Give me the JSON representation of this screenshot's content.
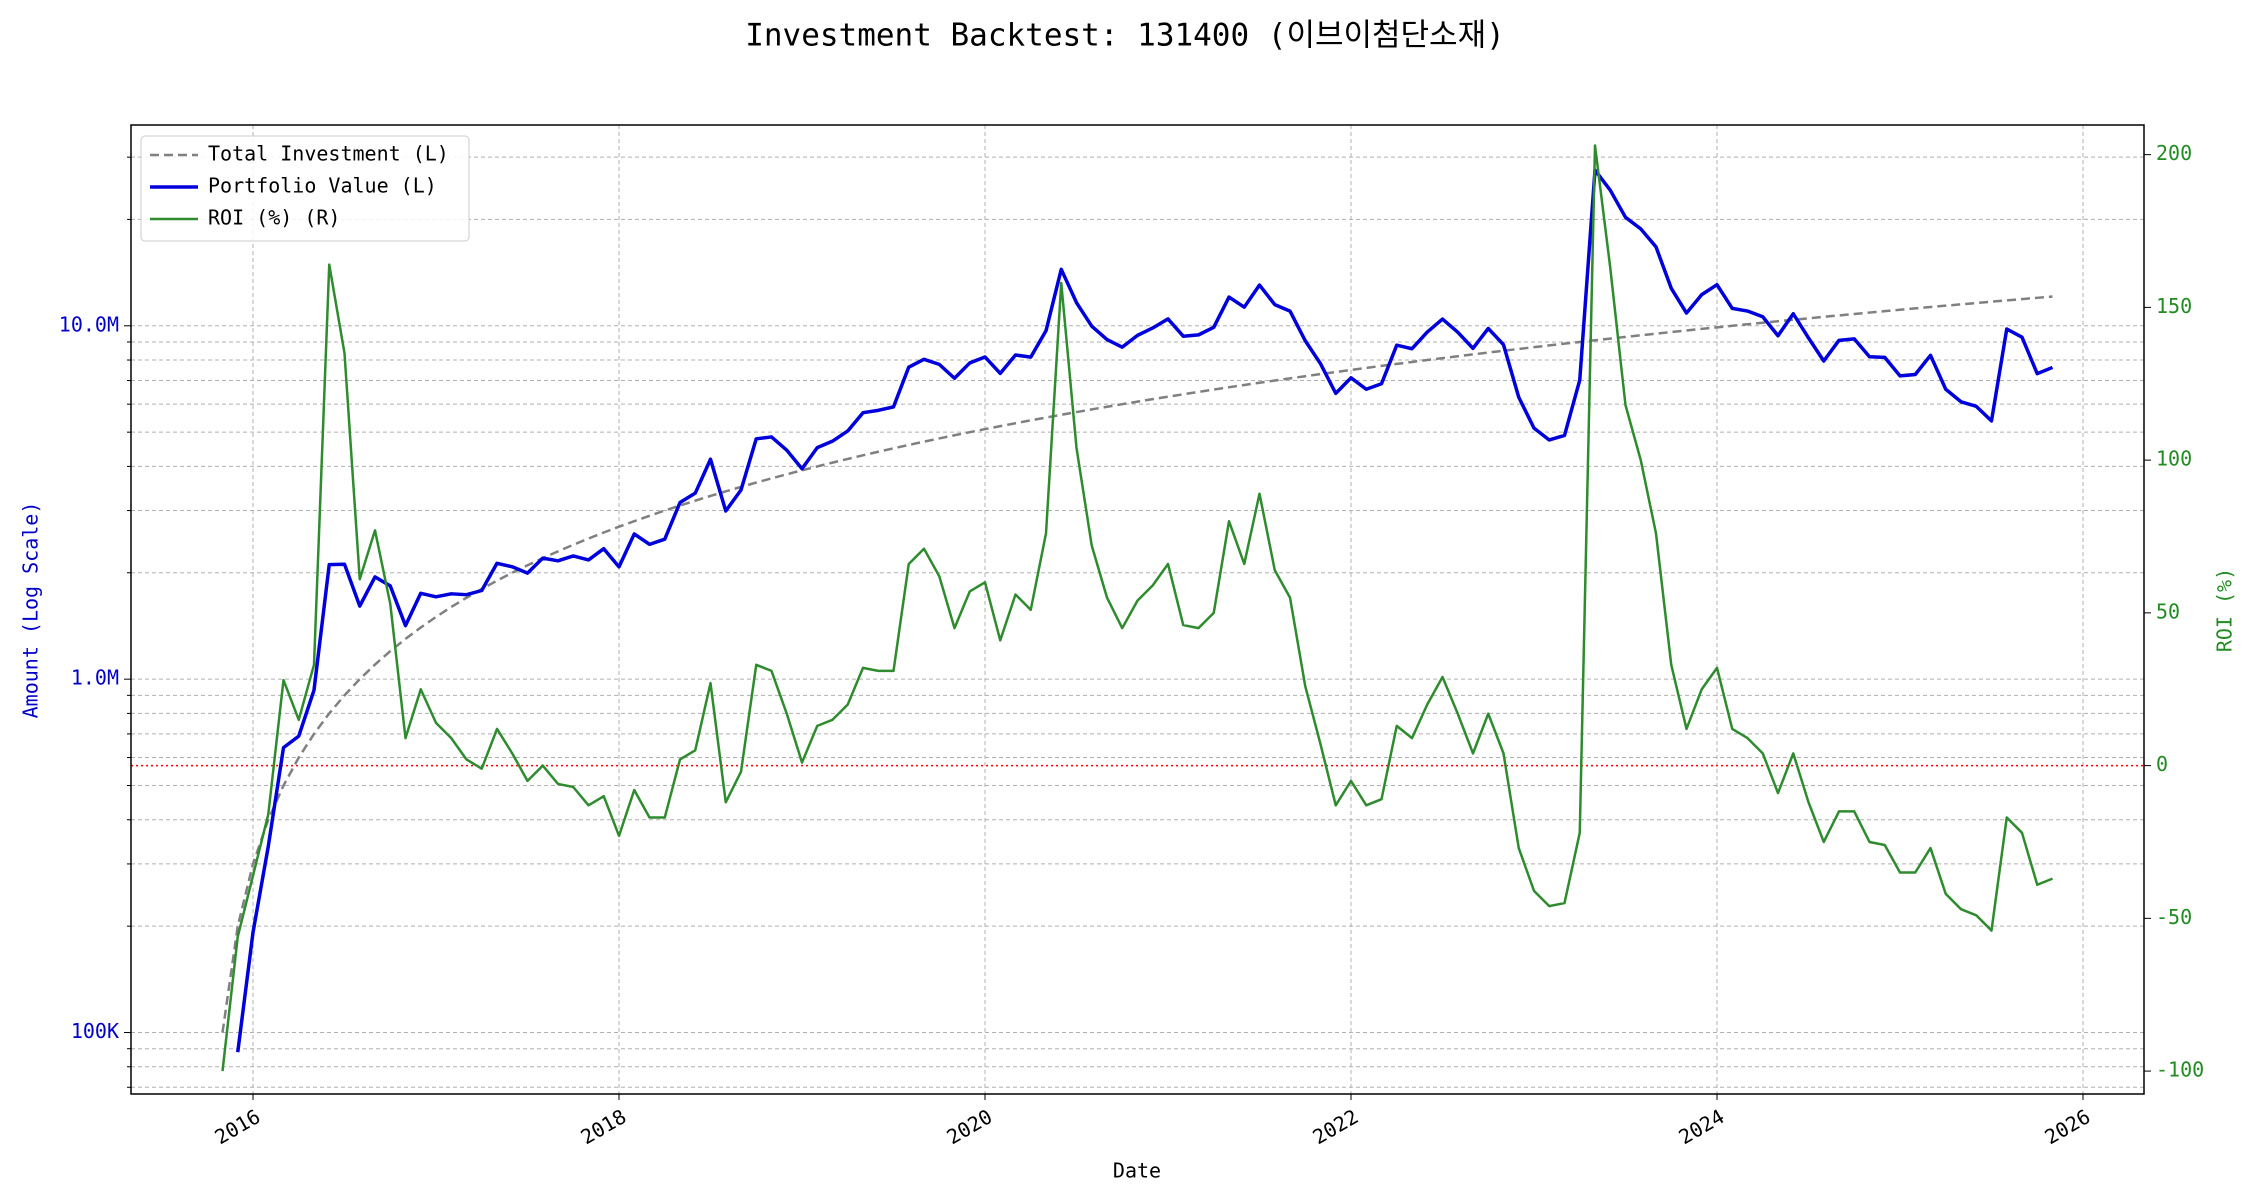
{
  "chart_data": {
    "type": "line",
    "title": "Investment Backtest: 131400 (이브이첨단소재)",
    "x_label": "Date",
    "y_label": "Amount (Log Scale)",
    "y2_label": "ROI (%)",
    "y_label_color": "#0000cc",
    "y2_label_color": "#228b22",
    "ylog": true,
    "grid": true,
    "legend": "upper left",
    "xlim": [
      "2015-05",
      "2026-05"
    ],
    "xticks": [
      {
        "value": "2016-01",
        "label": "2016"
      },
      {
        "value": "2018-01",
        "label": "2018"
      },
      {
        "value": "2020-01",
        "label": "2020"
      },
      {
        "value": "2022-01",
        "label": "2022"
      },
      {
        "value": "2024-01",
        "label": "2024"
      },
      {
        "value": "2026-01",
        "label": "2026"
      }
    ],
    "ylim": [
      67000,
      37000000
    ],
    "yticks": [
      {
        "value": 100000,
        "label": "100K"
      },
      {
        "value": 1000000,
        "label": "1.0M"
      },
      {
        "value": 10000000,
        "label": "10.0M"
      }
    ],
    "yminorticks": [
      70000,
      80000,
      90000,
      200000,
      300000,
      400000,
      500000,
      600000,
      700000,
      800000,
      900000,
      2000000,
      3000000,
      4000000,
      5000000,
      6000000,
      7000000,
      8000000,
      9000000,
      20000000,
      30000000
    ],
    "y2lim": [
      -107.5,
      209.7
    ],
    "y2ticks": [
      -100,
      -50,
      0,
      50,
      100,
      150,
      200
    ],
    "reference_line": {
      "axis": "y2",
      "value": 0,
      "color": "#ff0000"
    },
    "x": [
      "2015-11",
      "2015-12",
      "2016-01",
      "2016-02",
      "2016-03",
      "2016-04",
      "2016-05",
      "2016-06",
      "2016-07",
      "2016-08",
      "2016-09",
      "2016-10",
      "2016-11",
      "2016-12",
      "2017-01",
      "2017-02",
      "2017-03",
      "2017-04",
      "2017-05",
      "2017-06",
      "2017-07",
      "2017-08",
      "2017-09",
      "2017-10",
      "2017-11",
      "2017-12",
      "2018-01",
      "2018-02",
      "2018-03",
      "2018-04",
      "2018-05",
      "2018-06",
      "2018-07",
      "2018-08",
      "2018-09",
      "2018-10",
      "2018-11",
      "2018-12",
      "2019-01",
      "2019-02",
      "2019-03",
      "2019-04",
      "2019-05",
      "2019-06",
      "2019-07",
      "2019-08",
      "2019-09",
      "2019-10",
      "2019-11",
      "2019-12",
      "2020-01",
      "2020-02",
      "2020-03",
      "2020-04",
      "2020-05",
      "2020-06",
      "2020-07",
      "2020-08",
      "2020-09",
      "2020-10",
      "2020-11",
      "2020-12",
      "2021-01",
      "2021-02",
      "2021-03",
      "2021-04",
      "2021-05",
      "2021-06",
      "2021-07",
      "2021-08",
      "2021-09",
      "2021-10",
      "2021-11",
      "2021-12",
      "2022-01",
      "2022-02",
      "2022-03",
      "2022-04",
      "2022-05",
      "2022-06",
      "2022-07",
      "2022-08",
      "2022-09",
      "2022-10",
      "2022-11",
      "2022-12",
      "2023-01",
      "2023-02",
      "2023-03",
      "2023-04",
      "2023-05",
      "2023-06",
      "2023-07",
      "2023-08",
      "2023-09",
      "2023-10",
      "2023-11",
      "2023-12",
      "2024-01",
      "2024-02",
      "2024-03",
      "2024-04",
      "2024-05",
      "2024-06",
      "2024-07",
      "2024-08",
      "2024-09",
      "2024-10",
      "2024-11",
      "2024-12",
      "2025-01",
      "2025-02",
      "2025-03",
      "2025-04",
      "2025-05",
      "2025-06",
      "2025-07",
      "2025-08",
      "2025-09",
      "2025-10",
      "2025-11"
    ],
    "series": [
      {
        "name": "Total Investment (L)",
        "color": "#808080",
        "linestyle": "dashed",
        "width": 2.5,
        "axis": "y",
        "values": [
          100000,
          200000,
          300000,
          400000,
          500000,
          600000,
          700000,
          800000,
          900000,
          1000000,
          1100000,
          1200000,
          1300000,
          1400000,
          1500000,
          1600000,
          1700000,
          1800000,
          1900000,
          2000000,
          2100000,
          2200000,
          2300000,
          2400000,
          2500000,
          2600000,
          2700000,
          2800000,
          2900000,
          3000000,
          3100000,
          3200000,
          3300000,
          3400000,
          3500000,
          3600000,
          3700000,
          3800000,
          3900000,
          4000000,
          4100000,
          4200000,
          4300000,
          4400000,
          4500000,
          4600000,
          4700000,
          4800000,
          4900000,
          5000000,
          5100000,
          5200000,
          5300000,
          5400000,
          5500000,
          5600000,
          5700000,
          5800000,
          5900000,
          6000000,
          6100000,
          6200000,
          6300000,
          6400000,
          6500000,
          6600000,
          6700000,
          6800000,
          6900000,
          7000000,
          7100000,
          7200000,
          7300000,
          7400000,
          7500000,
          7600000,
          7700000,
          7800000,
          7900000,
          8000000,
          8100000,
          8200000,
          8300000,
          8400000,
          8500000,
          8600000,
          8700000,
          8800000,
          8900000,
          9000000,
          9100000,
          9200000,
          9300000,
          9400000,
          9500000,
          9600000,
          9700000,
          9800000,
          9900000,
          10000000,
          10100000,
          10200000,
          10300000,
          10400000,
          10500000,
          10600000,
          10700000,
          10800000,
          10900000,
          11000000,
          11100000,
          11200000,
          11300000,
          11400000,
          11500000,
          11600000,
          11700000,
          11800000,
          11900000,
          12000000,
          12100000
        ]
      },
      {
        "name": "Portfolio Value (L)",
        "color": "#0000dd",
        "linestyle": "solid",
        "width": 3.5,
        "axis": "y",
        "values": [
          null,
          88000,
          192000,
          336000,
          640000,
          690000,
          931000,
          2110000,
          2115000,
          1610000,
          1947000,
          1836000,
          1417000,
          1750000,
          1710000,
          1744000,
          1734000,
          1782000,
          2128000,
          2080000,
          1995000,
          2200000,
          2162000,
          2232000,
          2175000,
          2340000,
          2079000,
          2576000,
          2407000,
          2490000,
          3162000,
          3360000,
          4191000,
          2992000,
          3430000,
          4788000,
          4847000,
          4446000,
          3939000,
          4520000,
          4715000,
          5040000,
          5676000,
          5764000,
          5895000,
          7636000,
          8037000,
          7776000,
          7105000,
          7850000,
          8160000,
          7332000,
          8268000,
          8154000,
          9680000,
          14448000,
          11628000,
          9976000,
          9145000,
          8700000,
          9394000,
          9858000,
          10458000,
          9344000,
          9425000,
          9900000,
          12060000,
          11288000,
          13041000,
          11480000,
          11005000,
          9072000,
          7811000,
          6438000,
          7125000,
          6612000,
          6853000,
          8814000,
          8611000,
          9600000,
          10449000,
          9594000,
          8632000,
          9828000,
          8840000,
          6278000,
          5133000,
          4752000,
          4895000,
          7020000,
          27573000,
          24196000,
          20274000,
          18800000,
          16720000,
          12768000,
          10864000,
          12250000,
          13068000,
          11200000,
          11009000,
          10608000,
          9373000,
          10816000,
          9240000,
          7950000,
          9095000,
          9180000,
          8175000,
          8140000,
          7215000,
          7280000,
          8249000,
          6612000,
          6095000,
          5916000,
          5382000,
          9794000,
          9282000,
          7320000,
          7623000
        ]
      },
      {
        "name": "ROI (%) (R)",
        "color": "#2e8b2e",
        "linestyle": "solid",
        "width": 2.5,
        "axis": "y2",
        "values": [
          -100,
          -56,
          -36,
          -16,
          28,
          15,
          33,
          164,
          135,
          61,
          77,
          53,
          9,
          25,
          14,
          9,
          2,
          -1,
          12,
          4,
          -5,
          0,
          -6,
          -7,
          -13,
          -10,
          -23,
          -8,
          -17,
          -17,
          2,
          5,
          27,
          -12,
          -2,
          33,
          31,
          17,
          1,
          13,
          15,
          20,
          32,
          31,
          31,
          66,
          71,
          62,
          45,
          57,
          60,
          41,
          56,
          51,
          76,
          158,
          104,
          72,
          55,
          45,
          54,
          59,
          66,
          46,
          45,
          50,
          80,
          66,
          89,
          64,
          55,
          26,
          7,
          -13,
          -5,
          -13,
          -11,
          13,
          9,
          20,
          29,
          17,
          4,
          17,
          4,
          -27,
          -41,
          -46,
          -45,
          -22,
          203,
          163,
          118,
          100,
          76,
          33,
          12,
          25,
          32,
          12,
          9,
          4,
          -9,
          4,
          -12,
          -25,
          -15,
          -15,
          -25,
          -26,
          -35,
          -35,
          -27,
          -42,
          -47,
          -49,
          -54,
          -17,
          -22,
          -39,
          -37
        ]
      }
    ]
  }
}
